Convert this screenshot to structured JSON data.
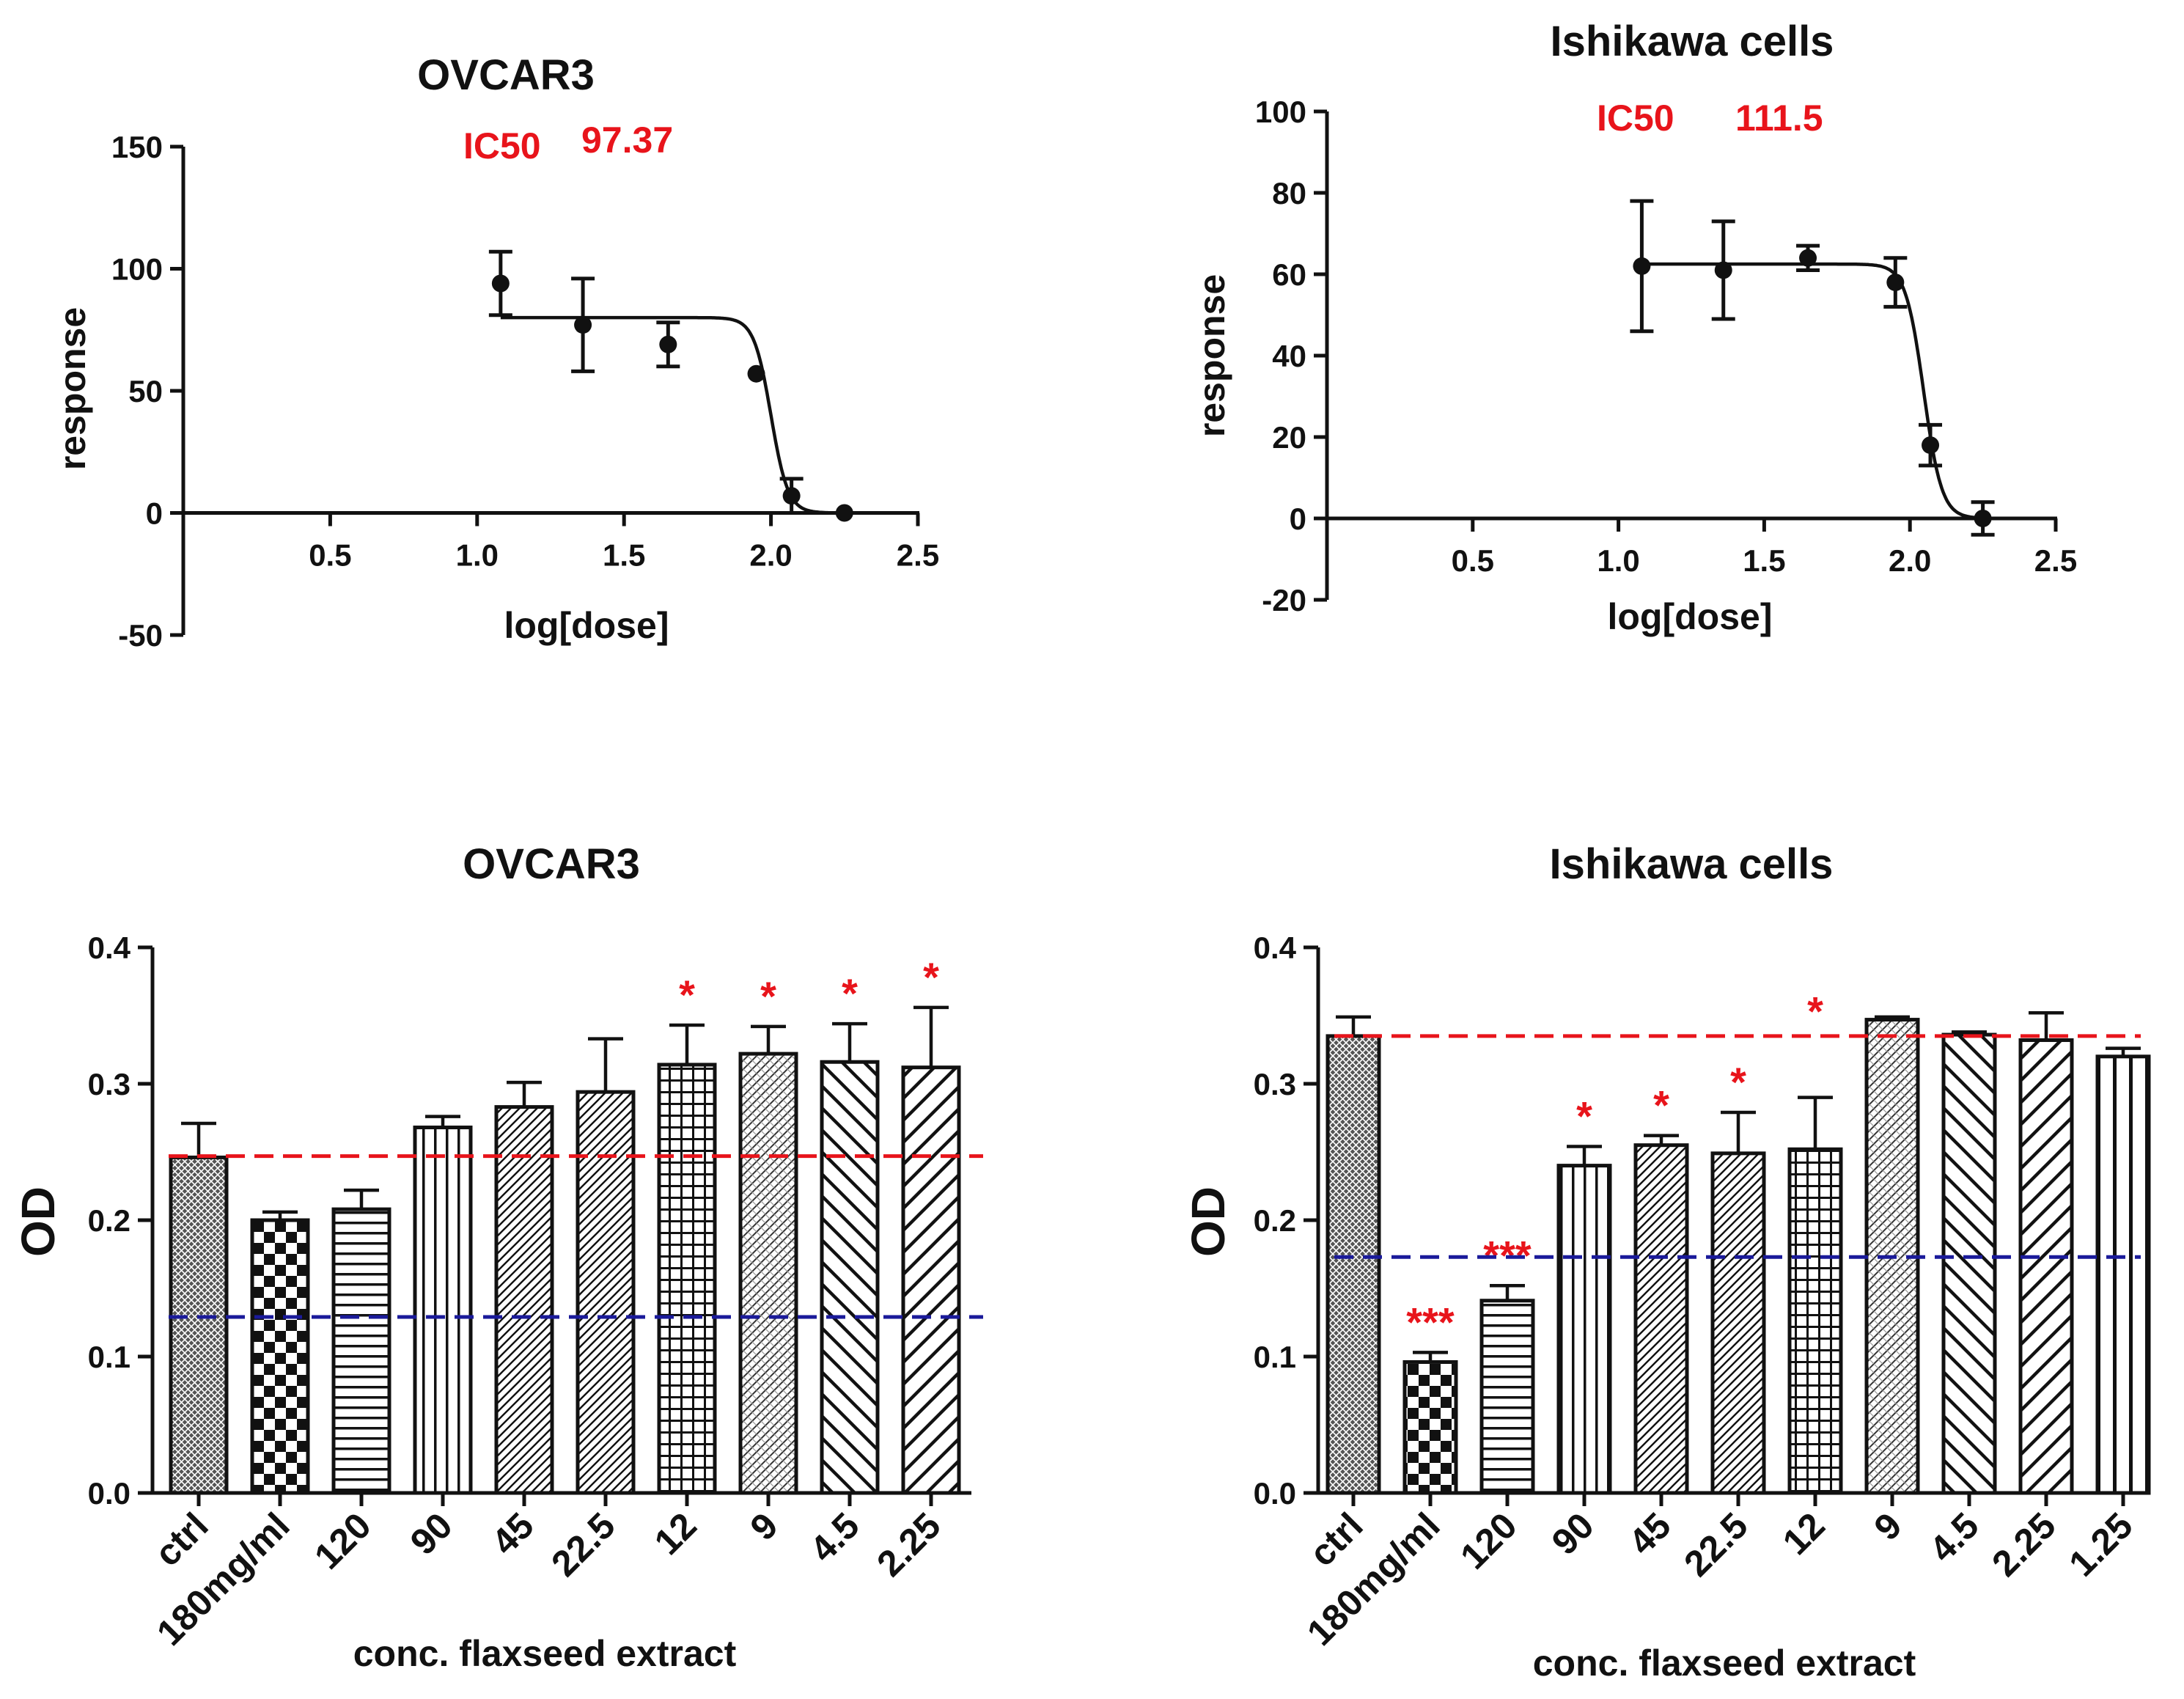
{
  "colors": {
    "axis": "#111111",
    "annotation": "#e8141b",
    "line_red": "#e8141b",
    "line_blue": "#1a1a9a"
  },
  "chart_data": [
    {
      "type": "scatter",
      "title": "OVCAR3",
      "xlabel": "log[dose]",
      "ylabel": "response",
      "xlim": [
        0,
        2.5
      ],
      "ylim": [
        -50,
        150
      ],
      "xticks": [
        "0.5",
        "1.0",
        "1.5",
        "2.0",
        "2.5"
      ],
      "yticks": [
        "150",
        "100",
        "50",
        "0",
        "-50"
      ],
      "ic50": {
        "label": "IC50",
        "value": "97.37"
      },
      "points": [
        {
          "x": 1.08,
          "y": 94,
          "err": 13
        },
        {
          "x": 1.36,
          "y": 77,
          "err": 19
        },
        {
          "x": 1.65,
          "y": 69,
          "err": 9
        },
        {
          "x": 1.95,
          "y": 57,
          "err": 0
        },
        {
          "x": 2.07,
          "y": 7,
          "err": 7
        },
        {
          "x": 2.25,
          "y": 0,
          "err": 0
        }
      ],
      "fit": {
        "top": 80,
        "bottom": 0,
        "logIC50": 2.0,
        "hill": -15
      }
    },
    {
      "type": "scatter",
      "title": "Ishikawa cells",
      "xlabel": "log[dose]",
      "ylabel": "response",
      "xlim": [
        0,
        2.5
      ],
      "ylim": [
        -20,
        100
      ],
      "xticks": [
        "0.5",
        "1.0",
        "1.5",
        "2.0",
        "2.5"
      ],
      "yticks": [
        "100",
        "80",
        "60",
        "40",
        "20",
        "0",
        "-20"
      ],
      "ic50": {
        "label": "IC50",
        "value": "111.5"
      },
      "points": [
        {
          "x": 1.08,
          "y": 62,
          "err": 16
        },
        {
          "x": 1.36,
          "y": 61,
          "err": 12
        },
        {
          "x": 1.65,
          "y": 64,
          "err": 3
        },
        {
          "x": 1.95,
          "y": 58,
          "err": 6
        },
        {
          "x": 2.07,
          "y": 18,
          "err": 5
        },
        {
          "x": 2.25,
          "y": 0,
          "err": 4
        }
      ],
      "fit": {
        "top": 62.5,
        "bottom": 0,
        "logIC50": 2.047,
        "hill": -14
      }
    },
    {
      "type": "bar",
      "title": "OVCAR3",
      "xlabel": "conc. flaxseed extract",
      "ylabel": "OD",
      "ylim": [
        0,
        0.4
      ],
      "yticks": [
        "0.4",
        "0.3",
        "0.2",
        "0.1",
        "0.0"
      ],
      "categories": [
        "ctrl",
        "180mg/ml",
        "120",
        "90",
        "45",
        "22.5",
        "12",
        "9",
        "4.5",
        "2.25"
      ],
      "values": [
        0.246,
        0.2,
        0.208,
        0.268,
        0.283,
        0.294,
        0.314,
        0.322,
        0.316,
        0.312
      ],
      "errors": [
        0.025,
        0.006,
        0.014,
        0.008,
        0.018,
        0.039,
        0.029,
        0.02,
        0.028,
        0.044
      ],
      "patterns": [
        "dense",
        "checker",
        "hlines",
        "vlines",
        "diag-fine",
        "diag-fine",
        "grid",
        "crosshatch",
        "backdiag",
        "diag"
      ],
      "significance": [
        "",
        "",
        "",
        "",
        "",
        "",
        "*",
        "*",
        "*",
        "*"
      ],
      "ref_lines": [
        {
          "color": "red",
          "y": 0.247
        },
        {
          "color": "blue",
          "y": 0.129
        }
      ]
    },
    {
      "type": "bar",
      "title": "Ishikawa cells",
      "xlabel": "conc. flaxseed extract",
      "ylabel": "OD",
      "ylim": [
        0,
        0.4
      ],
      "yticks": [
        "0.4",
        "0.3",
        "0.2",
        "0.1",
        "0.0"
      ],
      "categories": [
        "ctrl",
        "180mg/ml",
        "120",
        "90",
        "45",
        "22.5",
        "12",
        "9",
        "4.5",
        "2.25",
        "1.25"
      ],
      "values": [
        0.335,
        0.096,
        0.141,
        0.24,
        0.255,
        0.249,
        0.252,
        0.347,
        0.336,
        0.332,
        0.32
      ],
      "errors": [
        0.014,
        0.007,
        0.011,
        0.014,
        0.007,
        0.03,
        0.038,
        0.002,
        0.002,
        0.02,
        0.006
      ],
      "patterns": [
        "dense",
        "checker",
        "hlines",
        "vlines",
        "diag-fine",
        "diag-fine",
        "grid",
        "crosshatch",
        "backdiag",
        "diag",
        "vlines-wide"
      ],
      "significance": [
        "",
        "***",
        "***",
        "*",
        "*",
        "*",
        "",
        "",
        "",
        "",
        ""
      ],
      "extra_star": "*",
      "ref_lines": [
        {
          "color": "red",
          "y": 0.335
        },
        {
          "color": "blue",
          "y": 0.173
        }
      ]
    }
  ]
}
